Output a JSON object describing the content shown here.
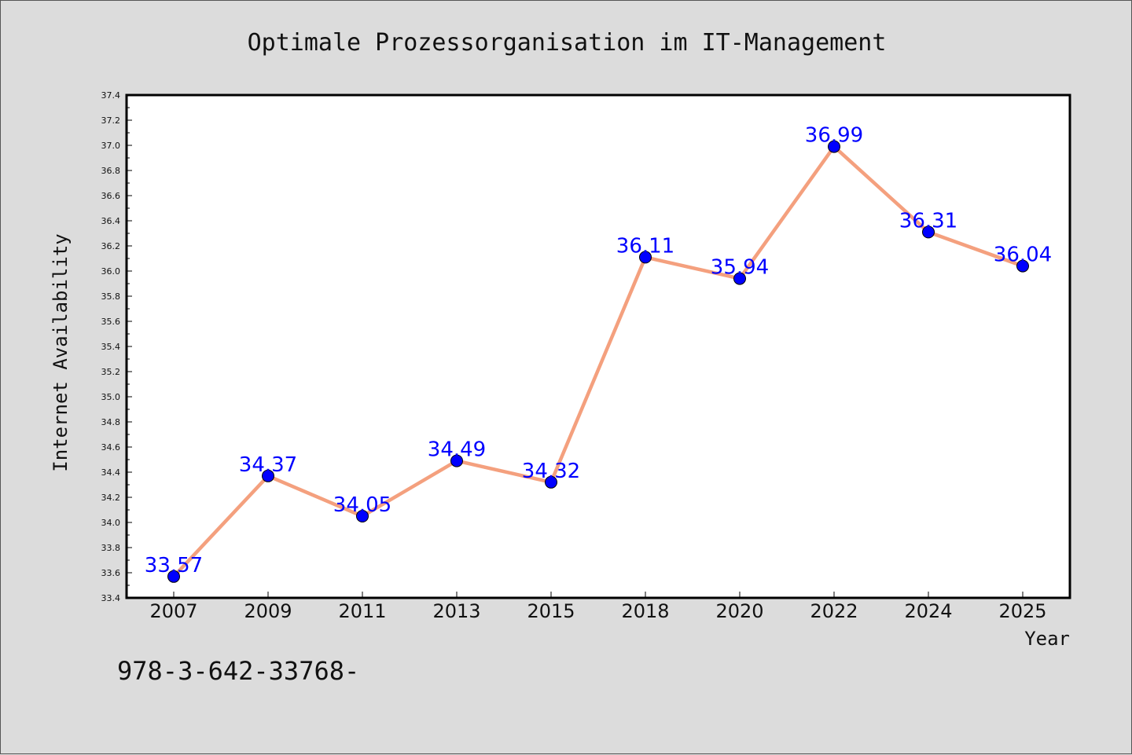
{
  "chart_data": {
    "type": "line",
    "title": "Optimale Prozessorganisation im IT-Management",
    "xlabel": "Year",
    "ylabel": "Internet Availability",
    "categories": [
      "2007",
      "2009",
      "2011",
      "2013",
      "2015",
      "2018",
      "2020",
      "2022",
      "2024",
      "2025"
    ],
    "series": [
      {
        "values": [
          33.57,
          34.37,
          34.05,
          34.49,
          34.32,
          36.11,
          35.94,
          36.99,
          36.31,
          36.04
        ],
        "line_color": "#f4a07e",
        "marker_color": "#0000ff"
      }
    ],
    "data_labels": [
      "33.57",
      "34.37",
      "34.05",
      "34.49",
      "34.32",
      "36.11",
      "35.94",
      "36.99",
      "36.31",
      "36.04"
    ],
    "ylim": [
      33.4,
      37.4
    ],
    "yticks": [
      "33.4",
      "33.6",
      "33.8",
      "34.0",
      "34.2",
      "34.4",
      "34.6",
      "34.8",
      "35.0",
      "35.2",
      "35.4",
      "35.6",
      "35.8",
      "36.0",
      "36.2",
      "36.4",
      "36.6",
      "36.8",
      "37.0",
      "37.2",
      "37.4"
    ],
    "grid": false,
    "legend": "none"
  },
  "footnote": "978-3-642-33768-",
  "colors": {
    "background": "#dcdcdc",
    "plot_background": "#ffffff",
    "line": "#f4a07e",
    "marker": "#0000ff",
    "data_label": "#0000ff"
  }
}
